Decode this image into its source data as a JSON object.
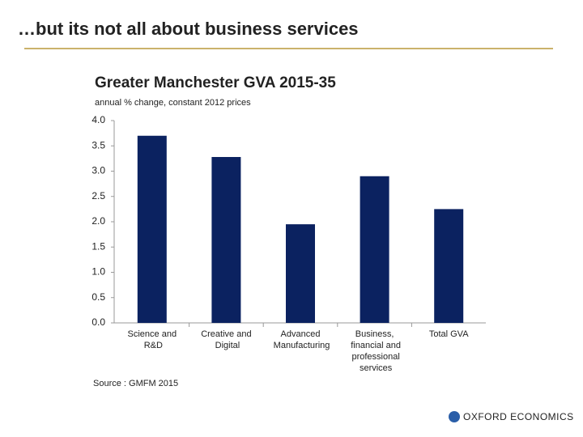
{
  "slide_title": "…but its not all about business services",
  "source": "Source : GMFM 2015",
  "logo": "OXFORD ECONOMICS",
  "chart_data": {
    "type": "bar",
    "title": "Greater Manchester GVA 2015-35",
    "subtitle": "annual  % change, constant 2012 prices",
    "categories": [
      "Science and R&D",
      "Creative and Digital",
      "Advanced Manufacturing",
      "Business, financial and professional services",
      "Total GVA"
    ],
    "values": [
      3.7,
      3.28,
      1.95,
      2.9,
      2.25
    ],
    "color": "#0b2260",
    "ylim": [
      0,
      4
    ],
    "yticks": [
      {
        "value": 0,
        "label": "0.0"
      },
      0.5,
      {
        "value": 1,
        "label": "1.0"
      },
      1.5,
      {
        "value": 2,
        "label": "2.0"
      },
      2.5,
      {
        "value": 3,
        "label": "3.0"
      },
      3.5,
      {
        "value": 4,
        "label": "4.0"
      }
    ],
    "grid": false
  }
}
